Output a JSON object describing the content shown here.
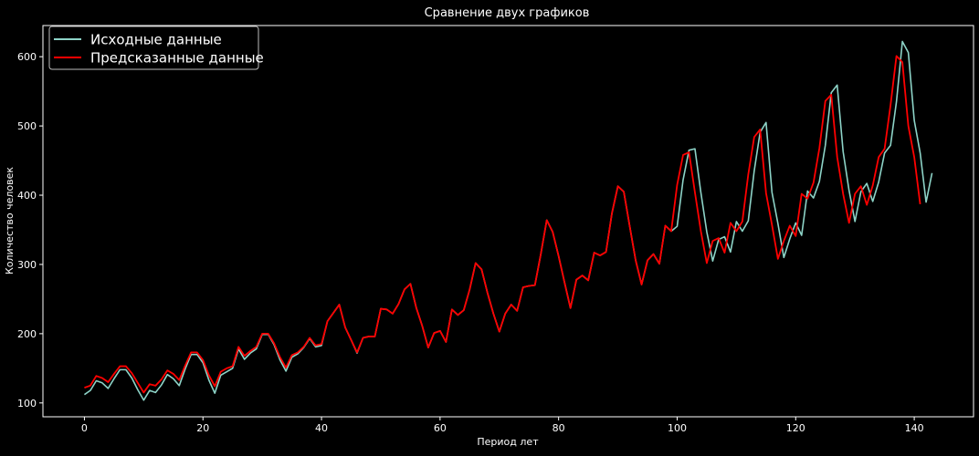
{
  "chart_data": {
    "type": "line",
    "title": "Сравнение двух графиков",
    "xlabel": "Период лет",
    "ylabel": "Количество человек",
    "xlim": [
      -7,
      150
    ],
    "ylim": [
      80,
      645
    ],
    "xticks": [
      0,
      20,
      40,
      60,
      80,
      100,
      120,
      140
    ],
    "yticks": [
      100,
      200,
      300,
      400,
      500,
      600
    ],
    "grid": false,
    "legend_position": "top-left",
    "background_color": "#000000",
    "foreground_color": "#ffffff",
    "series": [
      {
        "name": "Исходные данные",
        "color": "#8dd3c7",
        "x_start": 0,
        "values": [
          112,
          118,
          132,
          129,
          121,
          135,
          148,
          148,
          136,
          119,
          104,
          118,
          115,
          126,
          141,
          135,
          125,
          149,
          170,
          170,
          158,
          133,
          114,
          140,
          145,
          150,
          178,
          163,
          172,
          178,
          199,
          199,
          184,
          162,
          146,
          166,
          171,
          180,
          193,
          181,
          183,
          218,
          230,
          242,
          209,
          191,
          172,
          194,
          196,
          196,
          236,
          235,
          229,
          243,
          264,
          272,
          237,
          211,
          180,
          201,
          204,
          188,
          235,
          227,
          234,
          264,
          302,
          293,
          259,
          229,
          203,
          229,
          242,
          233,
          267,
          269,
          270,
          315,
          364,
          347,
          312,
          274,
          237,
          278,
          284,
          277,
          317,
          313,
          318,
          374,
          413,
          405,
          355,
          306,
          271,
          306,
          315,
          301,
          356,
          348,
          355,
          422,
          465,
          467,
          404,
          347,
          305,
          336,
          340,
          318,
          362,
          348,
          363,
          435,
          491,
          505,
          404,
          359,
          310,
          337,
          360,
          342,
          406,
          396,
          420,
          472,
          548,
          559,
          463,
          407,
          362,
          405,
          417,
          391,
          419,
          461,
          472,
          535,
          622,
          606,
          508,
          461,
          390,
          432
        ]
      },
      {
        "name": "Предсказанные данные",
        "color": "#ff0000",
        "x_start": 0,
        "values": [
          122,
          125,
          139,
          136,
          130,
          142,
          153,
          153,
          143,
          129,
          115,
          127,
          125,
          134,
          147,
          142,
          133,
          154,
          173,
          173,
          162,
          140,
          124,
          145,
          150,
          153,
          181,
          168,
          175,
          181,
          200,
          200,
          186,
          166,
          151,
          169,
          173,
          181,
          194,
          183,
          185,
          218,
          230,
          242,
          209,
          191,
          173,
          194,
          196,
          196,
          236,
          235,
          229,
          243,
          264,
          272,
          237,
          211,
          180,
          201,
          204,
          188,
          235,
          227,
          234,
          264,
          302,
          293,
          259,
          229,
          203,
          229,
          242,
          233,
          267,
          269,
          270,
          315,
          364,
          347,
          312,
          274,
          237,
          278,
          284,
          277,
          317,
          313,
          318,
          374,
          413,
          405,
          355,
          306,
          271,
          306,
          315,
          301,
          356,
          348,
          415,
          458,
          462,
          404,
          348,
          302,
          334,
          338,
          317,
          360,
          348,
          362,
          430,
          484,
          495,
          403,
          357,
          308,
          334,
          356,
          341,
          402,
          395,
          418,
          468,
          536,
          545,
          455,
          402,
          360,
          402,
          413,
          386,
          414,
          455,
          467,
          530,
          601,
          592,
          500,
          455,
          387
        ]
      }
    ]
  }
}
